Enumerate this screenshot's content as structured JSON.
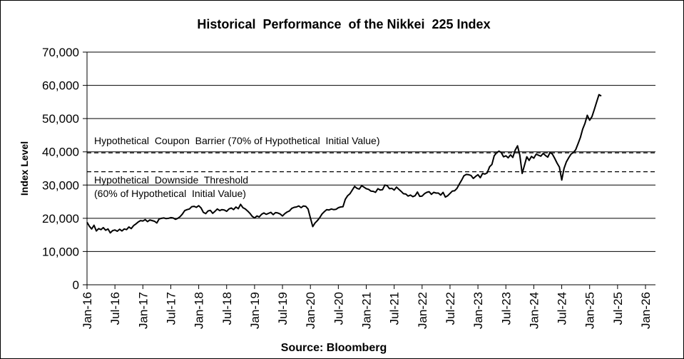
{
  "chart_data": {
    "type": "line",
    "title": "Historical  Performance  of the Nikkei  225 Index",
    "xlabel": "Source: Bloomberg",
    "ylabel": "Index Level",
    "ylim": [
      0,
      70000
    ],
    "y_ticks": [
      0,
      10000,
      20000,
      30000,
      40000,
      50000,
      60000,
      70000
    ],
    "y_tick_labels": [
      "0",
      "10,000",
      "20,000",
      "30,000",
      "40,000",
      "50,000",
      "60,000",
      "70,000"
    ],
    "x_range_months_since_jan16": [
      0,
      123
    ],
    "x_tick_labels": [
      "Jan-16",
      "Jul-16",
      "Jan-17",
      "Jul-17",
      "Jan-18",
      "Jul-18",
      "Jan-19",
      "Jul-19",
      "Jan-20",
      "Jul-20",
      "Jan-21",
      "Jul-21",
      "Jan-22",
      "Jul-22",
      "Jan-23",
      "Jul-23",
      "Jan-24",
      "Jul-24",
      "Jan-25",
      "Jul-25",
      "Jan-26"
    ],
    "grid": "horizontal",
    "legend": "none",
    "reference_lines": [
      {
        "name": "Hypothetical Coupon Barrier",
        "value": 39700,
        "style": "dashed",
        "label": "Hypothetical  Coupon  Barrier (70% of Hypothetical  Initial Value)"
      },
      {
        "name": "Hypothetical Downside Threshold",
        "value": 34000,
        "style": "dashed",
        "label_line1": "Hypothetical  Downside  Threshold",
        "label_line2": "(60% of Hypothetical  Initial Value)"
      }
    ],
    "series": [
      {
        "name": "Nikkei 225 Index",
        "color": "#000000",
        "x_months": [
          0,
          0.5,
          1,
          1.5,
          2,
          2.5,
          3,
          3.5,
          4,
          4.5,
          5,
          5.5,
          6,
          6.5,
          7,
          7.5,
          8,
          8.5,
          9,
          9.5,
          10,
          10.5,
          11,
          11.5,
          12,
          12.5,
          13,
          13.5,
          14,
          14.5,
          15,
          15.5,
          16,
          16.5,
          17,
          17.5,
          18,
          18.5,
          19,
          19.5,
          20,
          20.5,
          21,
          21.5,
          22,
          22.5,
          23,
          23.5,
          24,
          24.5,
          25,
          25.5,
          26,
          26.5,
          27,
          27.5,
          28,
          28.5,
          29,
          29.5,
          30,
          30.5,
          31,
          31.5,
          32,
          32.5,
          33,
          33.5,
          34,
          34.5,
          35,
          35.5,
          36,
          36.5,
          37,
          37.5,
          38,
          38.5,
          39,
          39.5,
          40,
          40.5,
          41,
          41.5,
          42,
          42.5,
          43,
          43.5,
          44,
          44.5,
          45,
          45.5,
          46,
          46.5,
          47,
          47.5,
          48,
          48.5,
          49,
          49.5,
          50,
          50.5,
          51,
          51.5,
          52,
          52.5,
          53,
          53.5,
          54,
          54.5,
          55,
          55.5,
          56,
          56.5,
          57,
          57.5,
          58,
          58.5,
          59,
          59.5,
          60,
          60.5,
          61,
          61.5,
          62,
          62.5,
          63,
          63.5,
          64,
          64.5,
          65,
          65.5,
          66,
          66.5,
          67,
          67.5,
          68,
          68.5,
          69,
          69.5,
          70,
          70.5,
          71,
          71.5,
          72,
          72.5,
          73,
          73.5,
          74,
          74.5,
          75,
          75.5,
          76,
          76.5,
          77,
          77.5,
          78,
          78.5,
          79,
          79.5,
          80,
          80.5,
          81,
          81.5,
          82,
          82.5,
          83,
          83.5,
          84,
          84.5,
          85,
          85.5,
          86,
          86.5,
          87,
          87.5,
          88,
          88.5,
          89,
          89.5,
          90,
          90.5,
          91,
          91.5,
          92,
          92.5,
          93,
          93.5,
          94,
          94.5,
          95,
          95.5,
          96,
          96.5,
          97,
          97.5,
          98,
          98.5,
          99,
          99.5,
          100,
          100.5,
          101,
          101.5,
          102,
          102.5,
          103,
          103.5,
          104,
          104.5,
          105,
          105.5,
          106,
          106.5,
          107,
          107.5,
          108,
          108.5,
          109,
          109.5,
          110,
          110.5,
          111,
          111.5,
          112,
          112.5,
          113,
          113.5,
          114,
          114.5,
          115,
          115.5,
          116,
          116.5,
          117,
          117.5,
          118,
          118.5,
          119,
          119.5,
          120,
          120.5,
          121,
          121.5,
          122,
          122.5,
          123
        ],
        "values": [
          18800,
          17600,
          16800,
          17900,
          16200,
          16900,
          16600,
          17200,
          16400,
          16800,
          15600,
          16300,
          16500,
          16100,
          16700,
          16200,
          16800,
          16600,
          17400,
          16900,
          17800,
          18300,
          18900,
          19300,
          19200,
          19600,
          19000,
          19500,
          19300,
          19100,
          18600,
          19800,
          20000,
          20100,
          19900,
          20000,
          20200,
          20100,
          19700,
          20000,
          20500,
          21300,
          22300,
          22600,
          22800,
          23500,
          23600,
          23300,
          23800,
          23100,
          21800,
          21400,
          22200,
          22400,
          21500,
          22100,
          22800,
          22300,
          22600,
          22500,
          22100,
          22800,
          23100,
          22600,
          23400,
          22900,
          24200,
          23200,
          22800,
          22200,
          21500,
          20600,
          20100,
          20700,
          20400,
          21200,
          21600,
          21200,
          21500,
          21800,
          21100,
          21700,
          21600,
          21300,
          20700,
          21400,
          21900,
          22200,
          23000,
          23300,
          23400,
          23700,
          23200,
          23700,
          23600,
          22800,
          20100,
          17500,
          18600,
          19300,
          20200,
          21300,
          22000,
          22600,
          22500,
          22800,
          22600,
          22700,
          23200,
          23400,
          23500,
          25700,
          26800,
          27400,
          28500,
          29600,
          29000,
          28800,
          29800,
          29400,
          28900,
          28700,
          28200,
          28100,
          27800,
          28900,
          28500,
          28600,
          30000,
          29800,
          28900,
          29000,
          28500,
          29400,
          28700,
          28100,
          27400,
          27300,
          26700,
          27000,
          26500,
          26800,
          27900,
          26600,
          26700,
          27400,
          27800,
          28000,
          27200,
          27800,
          27600,
          27600,
          27000,
          27800,
          26400,
          26800,
          27500,
          28200,
          28300,
          29000,
          30300,
          31500,
          32800,
          33200,
          33100,
          32900,
          32000,
          32600,
          33100,
          32200,
          33500,
          33300,
          33700,
          35500,
          36200,
          38800,
          39700,
          40200,
          39800,
          38500,
          38800,
          38200,
          39100,
          38300,
          40500,
          41800,
          39000,
          33500,
          36000,
          38500,
          37400,
          38600,
          38100,
          39300,
          39000,
          38700,
          39500,
          38900,
          38400,
          39800,
          39300,
          38000,
          36600,
          35400,
          31500,
          35000,
          37000,
          38200,
          39300,
          39800,
          40600,
          42400,
          44300,
          46800,
          48600,
          51000,
          49500,
          50600,
          52700,
          55000,
          57200,
          56800
        ],
        "note": "values approximated from the rendered line; sampled semi-monthly"
      }
    ]
  }
}
